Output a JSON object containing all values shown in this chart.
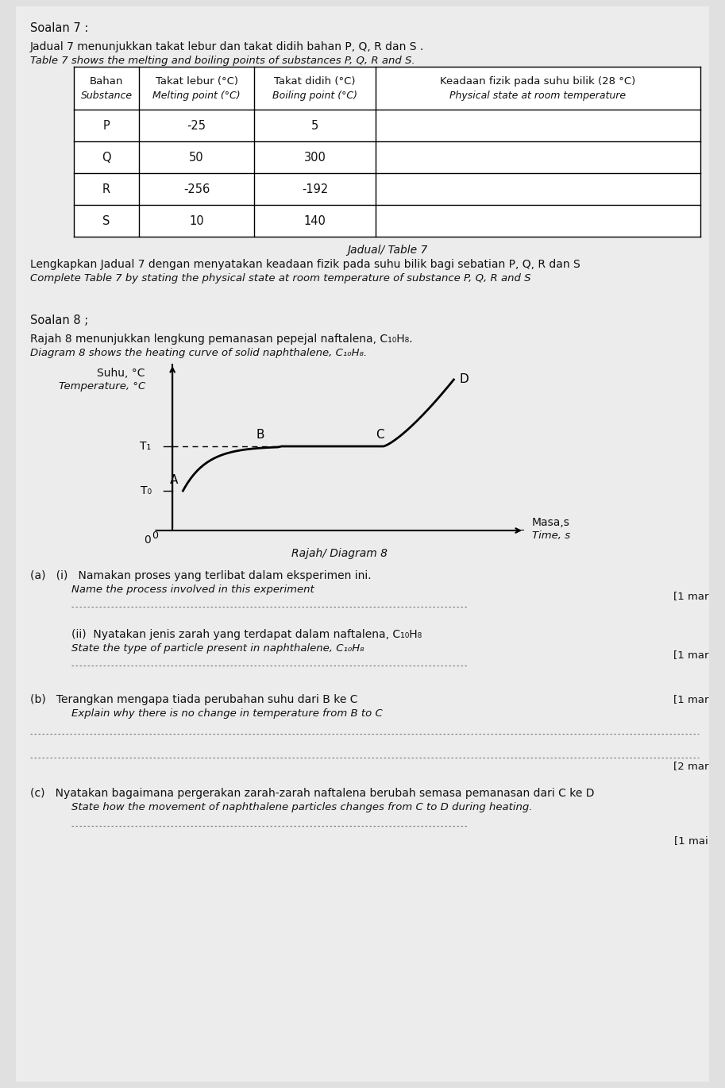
{
  "page_bg": "#e0e0e0",
  "content_bg": "#ececec",
  "soalan7_title": "Soalan 7 :",
  "soalan7_line1": "Jadual 7 menunjukkan takat lebur dan takat didih bahan P, Q, R dan S .",
  "soalan7_line2": "Table 7 shows the melting and boiling points of substances P, Q, R and S.",
  "table_header_col1_line1": "Bahan",
  "table_header_col1_line2": "Substance",
  "table_header_col2_line1": "Takat lebur (°C)",
  "table_header_col2_line2": "Melting point (°C)",
  "table_header_col3_line1": "Takat didih (°C)",
  "table_header_col3_line2": "Boiling point (°C)",
  "table_header_col4_line1": "Keadaan fizik pada suhu bilik (28 °C)",
  "table_header_col4_line2": "Physical state at room temperature",
  "table_substances": [
    "P",
    "Q",
    "R",
    "S"
  ],
  "table_melting": [
    "-25",
    "50",
    "-256",
    "10"
  ],
  "table_boiling": [
    "5",
    "300",
    "-192",
    "140"
  ],
  "table_caption": "Jadual/ Table 7",
  "complete_line1": "Lengkapkan Jadual 7 dengan menyatakan keadaan fizik pada suhu bilik bagi sebatian P, Q, R dan S",
  "complete_line2": "Complete Table 7 by stating the physical state at room temperature of substance P, Q, R and S",
  "soalan8_title": "Soalan 8 ;",
  "soalan8_line1": "Rajah 8 menunjukkan lengkung pemanasan pepejal naftalena, C₁₀H₈.",
  "soalan8_line2": "Diagram 8 shows the heating curve of solid naphthalene, C₁₀H₈.",
  "graph_ylabel1": "Suhu, °C",
  "graph_ylabel2": "Temperature, °C",
  "graph_xlabel1": "Masa,s",
  "graph_xlabel2": "Time, s",
  "graph_caption": "Rajah/ Diagram 8",
  "graph_t0": "T₀",
  "graph_t1": "T₁",
  "qa_i_line1": "(a)   (i)   Namakan proses yang terlibat dalam eksperimen ini.",
  "qa_i_line2": "Name the process involved in this experiment",
  "qa_ii_line1": "(ii)  Nyatakan jenis zarah yang terdapat dalam naftalena, C₁₀H₈",
  "qa_ii_line2": "State the type of particle present in naphthalene, C₁₀H₈",
  "qb_line1": "(b)   Terangkan mengapa tiada perubahan suhu dari B ke C",
  "qb_line2": "Explain why there is no change in temperature from B to C",
  "qc_line1": "(c)   Nyatakan bagaimana pergerakan zarah-zarah naftalena berubah semasa pemanasan dari C ke D",
  "qc_line2": "State how the movement of naphthalene particles changes from C to D during heating.",
  "mark_1mar": "[1 mar",
  "mark_2mar": "[2 mar",
  "mark_1mai": "[1 mai"
}
